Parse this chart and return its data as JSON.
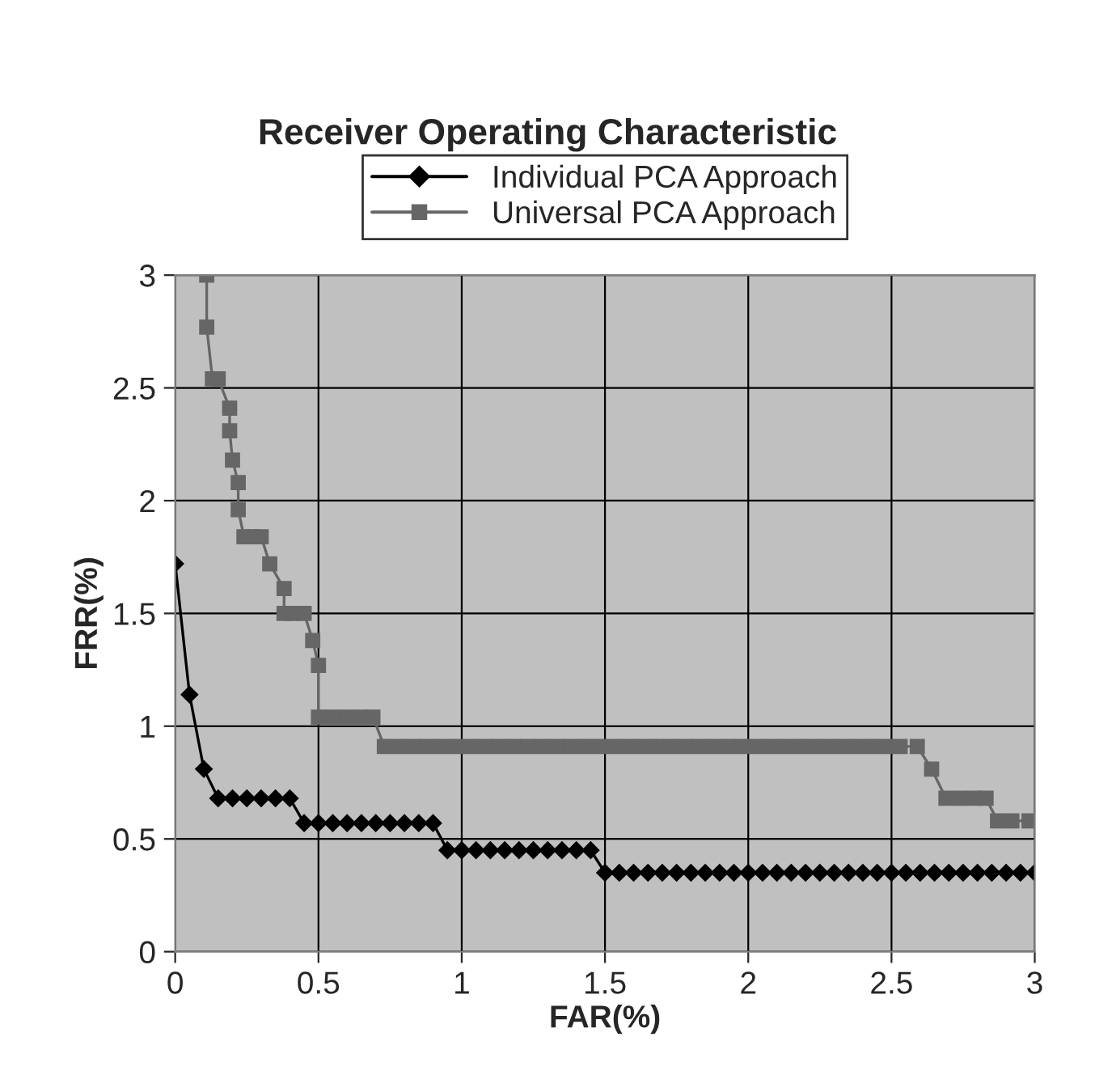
{
  "chart_data": {
    "type": "line",
    "title": "Receiver Operating Characteristic",
    "xlabel": "FAR(%)",
    "ylabel": "FRR(%)",
    "xlim": [
      0,
      3
    ],
    "ylim": [
      0,
      3
    ],
    "xticks": [
      0,
      0.5,
      1,
      1.5,
      2,
      2.5,
      3
    ],
    "yticks": [
      0,
      0.5,
      1,
      1.5,
      2,
      2.5,
      3
    ],
    "grid": true,
    "legend": "top",
    "series": [
      {
        "name": "Individual PCA Approach",
        "color": "#000000",
        "marker": "diamond",
        "x": [
          0,
          0.05,
          0.1,
          0.15,
          0.2,
          0.25,
          0.3,
          0.35,
          0.4,
          0.45,
          0.5,
          0.55,
          0.6,
          0.65,
          0.7,
          0.75,
          0.8,
          0.85,
          0.9,
          0.95,
          1.0,
          1.05,
          1.1,
          1.15,
          1.2,
          1.25,
          1.3,
          1.35,
          1.4,
          1.45,
          1.5,
          1.55,
          1.6,
          1.65,
          1.7,
          1.75,
          1.8,
          1.85,
          1.9,
          1.95,
          2.0,
          2.05,
          2.1,
          2.15,
          2.2,
          2.25,
          2.3,
          2.35,
          2.4,
          2.45,
          2.5,
          2.55,
          2.6,
          2.65,
          2.7,
          2.75,
          2.8,
          2.85,
          2.9,
          2.95,
          3.0
        ],
        "values": [
          1.72,
          1.14,
          0.81,
          0.68,
          0.68,
          0.68,
          0.68,
          0.68,
          0.68,
          0.57,
          0.57,
          0.57,
          0.57,
          0.57,
          0.57,
          0.57,
          0.57,
          0.57,
          0.57,
          0.45,
          0.45,
          0.45,
          0.45,
          0.45,
          0.45,
          0.45,
          0.45,
          0.45,
          0.45,
          0.45,
          0.35,
          0.35,
          0.35,
          0.35,
          0.35,
          0.35,
          0.35,
          0.35,
          0.35,
          0.35,
          0.35,
          0.35,
          0.35,
          0.35,
          0.35,
          0.35,
          0.35,
          0.35,
          0.35,
          0.35,
          0.35,
          0.35,
          0.35,
          0.35,
          0.35,
          0.35,
          0.35,
          0.35,
          0.35,
          0.35,
          0.35
        ]
      },
      {
        "name": "Universal PCA Approach",
        "color": "#666666",
        "marker": "square",
        "x": [
          0.11,
          0.11,
          0.13,
          0.15,
          0.19,
          0.19,
          0.2,
          0.22,
          0.22,
          0.24,
          0.27,
          0.3,
          0.33,
          0.38,
          0.38,
          0.41,
          0.45,
          0.48,
          0.5,
          0.5,
          0.55,
          0.6,
          0.65,
          0.69,
          0.73,
          0.78,
          0.83,
          0.88,
          0.93,
          0.98,
          1.03,
          1.08,
          1.13,
          1.18,
          1.23,
          1.28,
          1.33,
          1.38,
          1.43,
          1.48,
          1.53,
          1.58,
          1.63,
          1.68,
          1.73,
          1.78,
          1.83,
          1.88,
          1.93,
          1.98,
          2.03,
          2.08,
          2.13,
          2.18,
          2.23,
          2.28,
          2.33,
          2.38,
          2.43,
          2.48,
          2.53,
          2.59,
          2.64,
          2.69,
          2.74,
          2.79,
          2.83,
          2.87,
          2.92,
          2.98
        ],
        "values": [
          3.0,
          2.77,
          2.54,
          2.54,
          2.41,
          2.31,
          2.18,
          2.08,
          1.96,
          1.84,
          1.84,
          1.84,
          1.72,
          1.61,
          1.5,
          1.5,
          1.5,
          1.38,
          1.27,
          1.04,
          1.04,
          1.04,
          1.04,
          1.04,
          0.91,
          0.91,
          0.91,
          0.91,
          0.91,
          0.91,
          0.91,
          0.91,
          0.91,
          0.91,
          0.91,
          0.91,
          0.91,
          0.91,
          0.91,
          0.91,
          0.91,
          0.91,
          0.91,
          0.91,
          0.91,
          0.91,
          0.91,
          0.91,
          0.91,
          0.91,
          0.91,
          0.91,
          0.91,
          0.91,
          0.91,
          0.91,
          0.91,
          0.91,
          0.91,
          0.91,
          0.91,
          0.91,
          0.81,
          0.68,
          0.68,
          0.68,
          0.68,
          0.58,
          0.58,
          0.58
        ]
      }
    ]
  }
}
